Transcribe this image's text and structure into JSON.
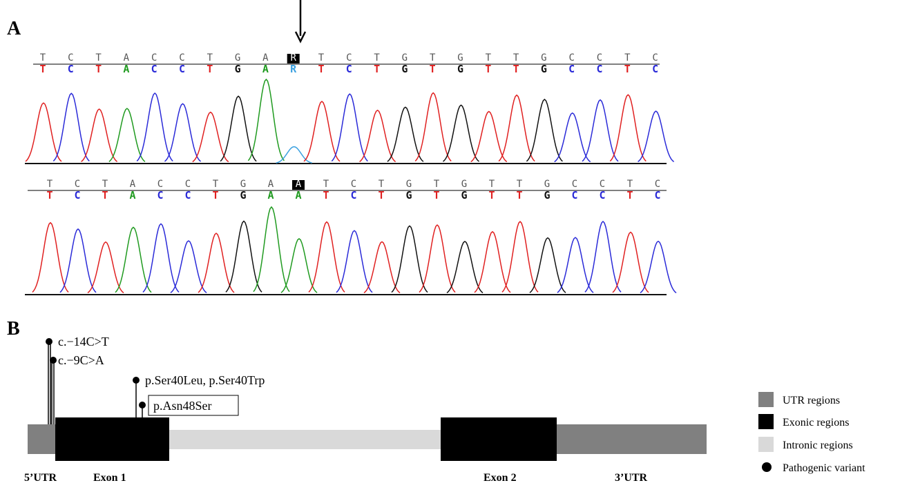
{
  "panel_a": {
    "label": "A",
    "base_colors": {
      "A": "#1f9a1f",
      "C": "#2a2ad8",
      "G": "#111111",
      "T": "#e02020",
      "R": "#3aa0e0"
    },
    "traces": [
      {
        "reference": [
          "T",
          "C",
          "T",
          "A",
          "C",
          "C",
          "T",
          "G",
          "A",
          "R",
          "T",
          "C",
          "T",
          "G",
          "T",
          "G",
          "T",
          "T",
          "G",
          "C",
          "C",
          "T",
          "C"
        ],
        "called": [
          "T",
          "C",
          "T",
          "A",
          "C",
          "C",
          "T",
          "G",
          "A",
          "R",
          "T",
          "C",
          "T",
          "G",
          "T",
          "G",
          "T",
          "T",
          "G",
          "C",
          "C",
          "T",
          "C"
        ]
      },
      {
        "reference": [
          "T",
          "C",
          "T",
          "A",
          "C",
          "C",
          "T",
          "G",
          "A",
          "A",
          "T",
          "C",
          "T",
          "G",
          "T",
          "G",
          "T",
          "T",
          "G",
          "C",
          "C",
          "T",
          "C"
        ],
        "called": [
          "T",
          "C",
          "T",
          "A",
          "C",
          "C",
          "T",
          "G",
          "A",
          "A",
          "T",
          "C",
          "T",
          "G",
          "T",
          "G",
          "T",
          "T",
          "G",
          "C",
          "C",
          "T",
          "C"
        ]
      }
    ]
  },
  "panel_b": {
    "label": "B",
    "variants": [
      "c.−14C>T",
      "c.−9C>A",
      "p.Ser40Leu, p.Ser40Trp",
      "p.Asn48Ser"
    ],
    "regions": [
      "5’UTR",
      "Exon 1",
      "Exon 2",
      "3’UTR"
    ],
    "legend": [
      "UTR regions",
      "Exonic regions",
      "Intronic regions",
      "Pathogenic variant"
    ]
  }
}
